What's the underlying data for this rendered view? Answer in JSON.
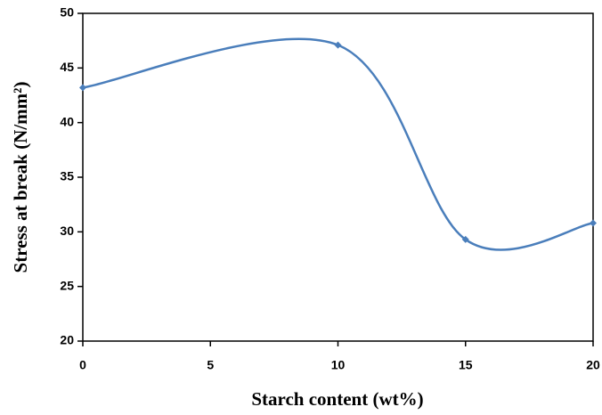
{
  "chart_data": {
    "type": "scatter",
    "smooth": true,
    "x": [
      0,
      10,
      15,
      20
    ],
    "values": [
      43.2,
      47.1,
      29.3,
      30.8
    ],
    "color": "#4a7ebb",
    "xlabel": "Starch content (wt%)",
    "ylabel": "Stress at break (N/mm²)",
    "xlim": [
      0,
      20
    ],
    "xticks": [
      0,
      5,
      10,
      15,
      20
    ],
    "ylim": [
      20,
      50
    ],
    "yticks": [
      20,
      25,
      30,
      35,
      40,
      45,
      50
    ]
  }
}
